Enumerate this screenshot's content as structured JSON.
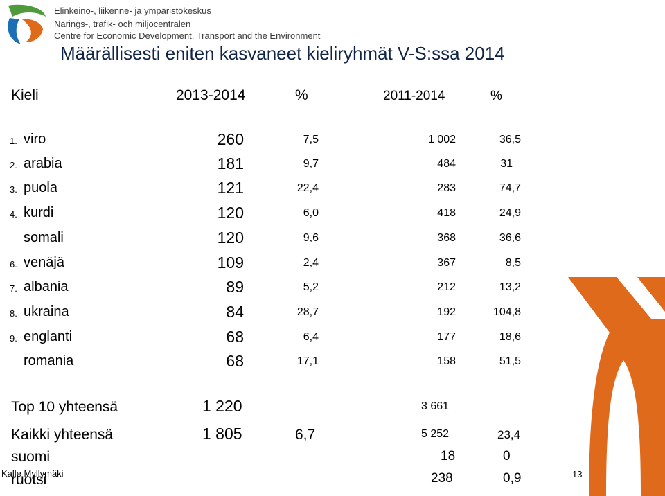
{
  "org": {
    "line1": "Elinkeino-, liikenne- ja ympäristökeskus",
    "line2": "Närings-, trafik- och miljöcentralen",
    "line3": "Centre for Economic Development, Transport and the Environment"
  },
  "title": "Määrällisesti eniten kasvaneet kieliryhmät V-S:ssa 2014",
  "headers": {
    "lang": "Kieli",
    "p1": "2013-2014",
    "pct1": "%",
    "p2": "2011-2014",
    "pct2": "%"
  },
  "rows": [
    {
      "num": "1.",
      "lang": "viro",
      "v1": "260",
      "pct1": "7,5",
      "v2": "1 002",
      "pct2": "36,5"
    },
    {
      "num": "2.",
      "lang": "arabia",
      "v1": "181",
      "pct1": "9,7",
      "v2": "484",
      "pct2": "31"
    },
    {
      "num": "3.",
      "lang": "puola",
      "v1": "121",
      "pct1": "22,4",
      "v2": "283",
      "pct2": "74,7"
    },
    {
      "num": "4.",
      "lang": "kurdi",
      "v1": "120",
      "pct1": "6,0",
      "v2": "418",
      "pct2": "24,9"
    },
    {
      "num": "",
      "lang": "somali",
      "v1": "120",
      "pct1": "9,6",
      "v2": "368",
      "pct2": "36,6"
    },
    {
      "num": "6.",
      "lang": "venäjä",
      "v1": "109",
      "pct1": "2,4",
      "v2": "367",
      "pct2": "8,5"
    },
    {
      "num": "7.",
      "lang": "albania",
      "v1": "89",
      "pct1": "5,2",
      "v2": "212",
      "pct2": "13,2"
    },
    {
      "num": "8.",
      "lang": "ukraina",
      "v1": "84",
      "pct1": "28,7",
      "v2": "192",
      "pct2": "104,8"
    },
    {
      "num": "9.",
      "lang": "englanti",
      "v1": "68",
      "pct1": "6,4",
      "v2": "177",
      "pct2": "18,6"
    },
    {
      "num": "",
      "lang": "romania",
      "v1": "68",
      "pct1": "17,1",
      "v2": "158",
      "pct2": "51,5"
    }
  ],
  "totals": {
    "top10": {
      "label": "Top 10 yhteensä",
      "v1": "1 220",
      "v2": "3 661"
    },
    "all": {
      "label": "Kaikki yhteensä",
      "v1": "1 805",
      "pct1": "6,7",
      "v2": "5 252",
      "pct2": "23,4"
    },
    "suomi": {
      "label": "suomi",
      "v2": "18",
      "pct2": "0"
    },
    "ruotsi": {
      "label": "ruotsi",
      "v2": "238",
      "pct2": "0,9"
    }
  },
  "footer": {
    "author": "Kalle Myllymäki",
    "page": "13"
  },
  "colors": {
    "orange": "#e06a1b",
    "navy": "#0f2447",
    "blue": "#1d6fb5",
    "green": "#4f9a3a"
  }
}
